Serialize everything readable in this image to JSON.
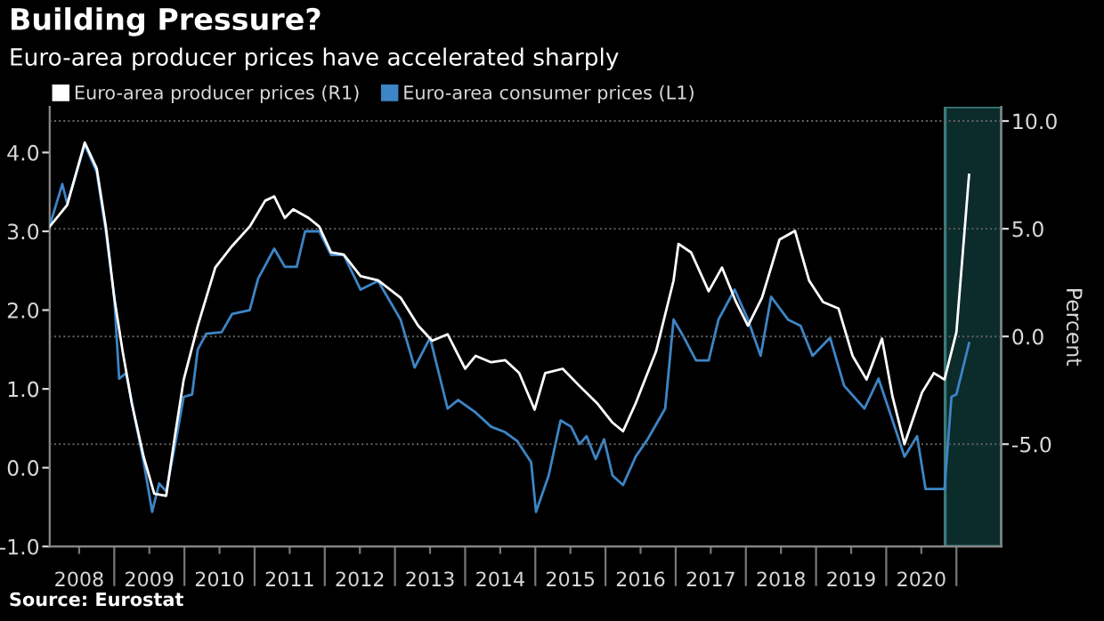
{
  "chart_data": {
    "type": "line",
    "title": "Building Pressure?",
    "subtitle": "Euro-area producer prices have accelerated sharply",
    "annotations": [
      "Source: Eurostat"
    ],
    "y2label": "Percent",
    "series": [
      {
        "name": "Euro-area producer prices (R1)",
        "color": "#ffffff",
        "axis": "y2",
        "x": [
          2008.08,
          2008.33,
          2008.58,
          2008.75,
          2008.88,
          2009.0,
          2009.12,
          2009.25,
          2009.42,
          2009.57,
          2009.74,
          2009.87,
          2009.99,
          2010.19,
          2010.44,
          2010.68,
          2010.93,
          2011.15,
          2011.28,
          2011.43,
          2011.55,
          2011.77,
          2011.92,
          2012.09,
          2012.27,
          2012.51,
          2012.76,
          2013.08,
          2013.33,
          2013.53,
          2013.75,
          2014.0,
          2014.15,
          2014.37,
          2014.57,
          2014.77,
          2014.99,
          2015.14,
          2015.39,
          2015.63,
          2015.88,
          2016.1,
          2016.25,
          2016.43,
          2016.72,
          2016.97,
          2017.04,
          2017.22,
          2017.47,
          2017.66,
          2017.86,
          2018.03,
          2018.23,
          2018.48,
          2018.7,
          2018.9,
          2019.1,
          2019.32,
          2019.52,
          2019.72,
          2019.94,
          2020.09,
          2020.26,
          2020.51,
          2020.68,
          2020.83,
          2021.0,
          2021.18
        ],
        "values": [
          5.1,
          6.1,
          9.0,
          7.8,
          5.1,
          1.8,
          -0.7,
          -3.1,
          -5.6,
          -7.3,
          -7.4,
          -4.5,
          -2.0,
          0.5,
          3.2,
          4.2,
          5.1,
          6.3,
          6.5,
          5.5,
          5.9,
          5.5,
          5.1,
          3.9,
          3.8,
          2.8,
          2.6,
          1.8,
          0.5,
          -0.2,
          0.1,
          -1.5,
          -0.9,
          -1.2,
          -1.1,
          -1.7,
          -3.4,
          -1.7,
          -1.5,
          -2.3,
          -3.1,
          -4.0,
          -4.4,
          -3.1,
          -0.7,
          2.6,
          4.3,
          3.9,
          2.1,
          3.2,
          1.6,
          0.5,
          1.8,
          4.5,
          4.9,
          2.6,
          1.6,
          1.3,
          -0.9,
          -2.0,
          -0.1,
          -2.8,
          -5.0,
          -2.6,
          -1.7,
          -2.0,
          0.2,
          7.5
        ]
      },
      {
        "name": "Euro-area consumer prices (L1)",
        "color": "#3d85c6",
        "x": [
          2008.08,
          2008.26,
          2008.33,
          2008.58,
          2008.75,
          2008.88,
          2009.0,
          2009.07,
          2009.17,
          2009.3,
          2009.42,
          2009.54,
          2009.64,
          2009.74,
          2009.87,
          2009.99,
          2010.11,
          2010.19,
          2010.31,
          2010.53,
          2010.68,
          2010.93,
          2011.05,
          2011.28,
          2011.43,
          2011.6,
          2011.72,
          2011.92,
          2012.09,
          2012.27,
          2012.51,
          2012.76,
          2013.08,
          2013.28,
          2013.5,
          2013.75,
          2013.9,
          2014.15,
          2014.37,
          2014.57,
          2014.74,
          2014.94,
          2015.01,
          2015.19,
          2015.36,
          2015.51,
          2015.63,
          2015.73,
          2015.86,
          2015.98,
          2016.1,
          2016.25,
          2016.43,
          2016.6,
          2016.85,
          2016.97,
          2017.12,
          2017.29,
          2017.47,
          2017.61,
          2017.84,
          2018.03,
          2018.21,
          2018.36,
          2018.6,
          2018.78,
          2018.95,
          2019.2,
          2019.4,
          2019.69,
          2019.89,
          2020.09,
          2020.26,
          2020.44,
          2020.56,
          2020.83,
          2020.93,
          2021.0,
          2021.18
        ],
        "values": [
          3.07,
          3.6,
          3.35,
          4.1,
          3.75,
          3.0,
          2.17,
          1.13,
          1.2,
          0.6,
          0.07,
          -0.56,
          -0.2,
          -0.3,
          0.3,
          0.9,
          0.93,
          1.5,
          1.7,
          1.72,
          1.95,
          2.0,
          2.4,
          2.78,
          2.55,
          2.55,
          3.0,
          3.0,
          2.7,
          2.7,
          2.26,
          2.37,
          1.88,
          1.27,
          1.65,
          0.75,
          0.86,
          0.7,
          0.52,
          0.45,
          0.34,
          0.07,
          -0.56,
          -0.1,
          0.6,
          0.52,
          0.3,
          0.4,
          0.11,
          0.36,
          -0.1,
          -0.22,
          0.14,
          0.36,
          0.75,
          1.88,
          1.65,
          1.36,
          1.36,
          1.88,
          2.26,
          1.88,
          1.42,
          2.17,
          1.88,
          1.8,
          1.42,
          1.65,
          1.04,
          0.75,
          1.13,
          0.6,
          0.14,
          0.4,
          -0.27,
          -0.27,
          0.9,
          0.93,
          1.58
        ]
      }
    ],
    "xlim": [
      2008.08,
      2021.64
    ],
    "xticks": [
      {
        "value": 2008.5,
        "label": "2008"
      },
      {
        "value": 2009.5,
        "label": "2009"
      },
      {
        "value": 2010.5,
        "label": "2010"
      },
      {
        "value": 2011.5,
        "label": "2011"
      },
      {
        "value": 2012.5,
        "label": "2012"
      },
      {
        "value": 2013.5,
        "label": "2013"
      },
      {
        "value": 2014.5,
        "label": "2014"
      },
      {
        "value": 2015.5,
        "label": "2015"
      },
      {
        "value": 2016.5,
        "label": "2016"
      },
      {
        "value": 2017.5,
        "label": "2017"
      },
      {
        "value": 2018.5,
        "label": "2018"
      },
      {
        "value": 2019.5,
        "label": "2019"
      },
      {
        "value": 2020.5,
        "label": "2020"
      }
    ],
    "ylim": [
      -1.0,
      4.58
    ],
    "yticks": [
      {
        "value": -1,
        "label": "-1.0"
      },
      {
        "value": 0,
        "label": "0.0"
      },
      {
        "value": 1,
        "label": "1.0"
      },
      {
        "value": 2,
        "label": "2.0"
      },
      {
        "value": 3,
        "label": "3.0"
      },
      {
        "value": 4,
        "label": "4.0"
      }
    ],
    "y2lim": [
      -9.75,
      10.66
    ],
    "y2ticks": [
      {
        "value": -5,
        "label": "-5.0"
      },
      {
        "value": 0,
        "label": "0.0"
      },
      {
        "value": 5,
        "label": "5.0"
      },
      {
        "value": 10,
        "label": "10.0"
      }
    ],
    "bands": [
      {
        "axis": "x",
        "from": 2020.84,
        "to": 2021.64,
        "color": "#0c2b2b"
      }
    ],
    "grid": "y2",
    "legend": "top left",
    "line_style": "solid",
    "marker": "none"
  }
}
